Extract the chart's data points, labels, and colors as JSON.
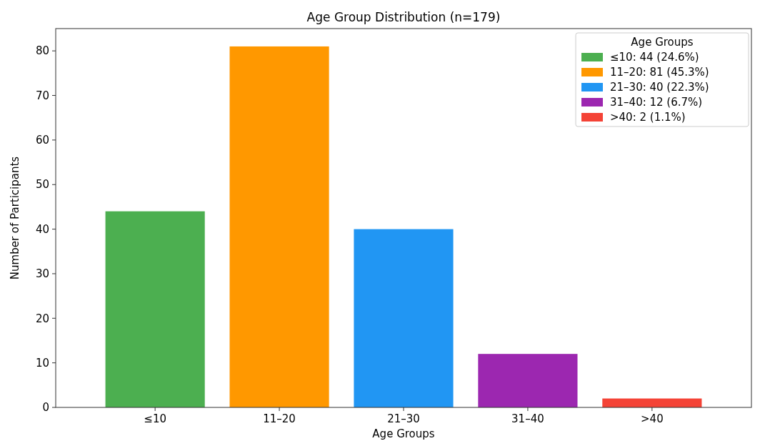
{
  "chart_data": {
    "type": "bar",
    "title": "Age Group Distribution (n=179)",
    "xlabel": "Age Groups",
    "ylabel": "Number of Participants",
    "legend_title": "Age Groups",
    "categories": [
      "≤10",
      "11–20",
      "21–30",
      "31–40",
      ">40"
    ],
    "series": [
      {
        "name": "≤10: 44 (24.6%)",
        "color": "#4caf50",
        "values": [
          44,
          null,
          null,
          null,
          null
        ]
      },
      {
        "name": "11–20: 81 (45.3%)",
        "color": "#ff9800",
        "values": [
          null,
          81,
          null,
          null,
          null
        ]
      },
      {
        "name": "21–30: 40 (22.3%)",
        "color": "#2196f3",
        "values": [
          null,
          null,
          40,
          null,
          null
        ]
      },
      {
        "name": "31–40: 12 (6.7%)",
        "color": "#9c27b0",
        "values": [
          null,
          null,
          null,
          12,
          null
        ]
      },
      {
        "name": ">40: 2 (1.1%)",
        "color": "#f44336",
        "values": [
          null,
          null,
          null,
          null,
          2
        ]
      }
    ],
    "ylim": [
      0,
      85
    ],
    "yticks": [
      0,
      10,
      20,
      30,
      40,
      50,
      60,
      70,
      80
    ],
    "grid": false,
    "legend": "top right"
  }
}
